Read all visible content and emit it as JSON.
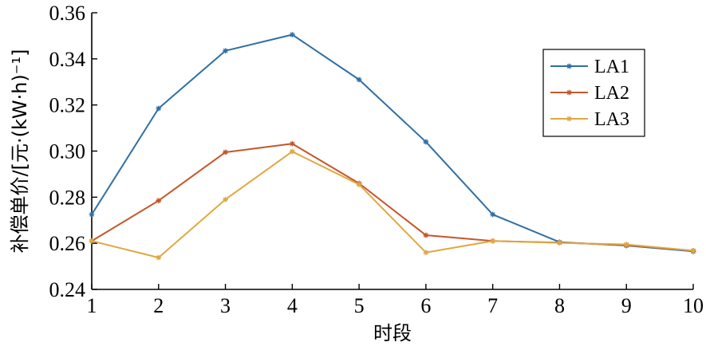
{
  "chart_data": {
    "type": "line",
    "title": "",
    "xlabel": "时段",
    "ylabel": "补偿单价/[元·(kW·h)⁻¹]",
    "x": [
      1,
      2,
      3,
      4,
      5,
      6,
      7,
      8,
      9,
      10
    ],
    "xlim": [
      1,
      10
    ],
    "ylim": [
      0.24,
      0.36
    ],
    "xticks": [
      "1",
      "2",
      "3",
      "4",
      "5",
      "6",
      "7",
      "8",
      "9",
      "10"
    ],
    "yticks": [
      "0.24",
      "0.26",
      "0.28",
      "0.30",
      "0.32",
      "0.34",
      "0.36"
    ],
    "grid": false,
    "legend_position": "right",
    "series": [
      {
        "name": "LA1",
        "color": "#2E6FA5",
        "values": [
          0.2725,
          0.3185,
          0.3435,
          0.3505,
          0.331,
          0.304,
          0.2725,
          0.2605,
          0.259,
          0.2565
        ]
      },
      {
        "name": "LA2",
        "color": "#C5572A",
        "values": [
          0.261,
          0.2785,
          0.2995,
          0.3032,
          0.286,
          0.2635,
          0.261,
          0.2603,
          0.2592,
          0.2568
        ]
      },
      {
        "name": "LA3",
        "color": "#DFA843",
        "values": [
          0.261,
          0.2538,
          0.279,
          0.2998,
          0.2855,
          0.256,
          0.261,
          0.2602,
          0.2595,
          0.2568
        ]
      }
    ]
  }
}
